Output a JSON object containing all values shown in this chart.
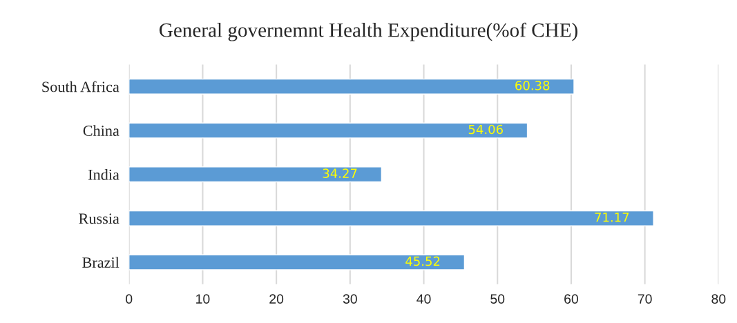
{
  "chart_data": {
    "type": "bar",
    "orientation": "horizontal",
    "title": "General governemnt Health Expenditure(%of CHE)",
    "categories": [
      "South Africa",
      "China",
      "India",
      "Russia",
      "Brazil"
    ],
    "series": [
      {
        "color": "#5b9bd5",
        "values": [
          60.38,
          54.06,
          34.27,
          71.17,
          45.52
        ]
      }
    ],
    "data_labels": true,
    "xlim": [
      0,
      80
    ],
    "xticks": [
      0,
      10,
      20,
      30,
      40,
      50,
      60,
      70,
      80
    ],
    "grid": "x",
    "legend": false
  }
}
